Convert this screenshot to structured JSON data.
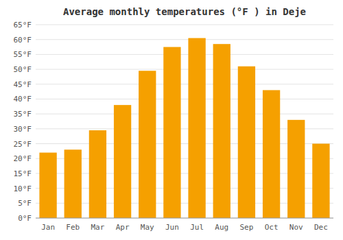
{
  "chart_data": {
    "type": "bar",
    "title": "Average monthly temperatures (°F ) in Deje",
    "categories": [
      "Jan",
      "Feb",
      "Mar",
      "Apr",
      "May",
      "Jun",
      "Jul",
      "Aug",
      "Sep",
      "Oct",
      "Nov",
      "Dec"
    ],
    "values": [
      22,
      23,
      29.5,
      38,
      49.5,
      57.5,
      60.5,
      58.5,
      51,
      43,
      33,
      25
    ],
    "color": "#F5A000",
    "ylim": [
      0,
      65
    ],
    "yticks": [
      {
        "value": 0,
        "label": "0°F"
      },
      {
        "value": 5,
        "label": "5°F"
      },
      {
        "value": 10,
        "label": "10°F"
      },
      {
        "value": 15,
        "label": "15°F"
      },
      {
        "value": 20,
        "label": "20°F"
      },
      {
        "value": 25,
        "label": "25°F"
      },
      {
        "value": 30,
        "label": "30°F"
      },
      {
        "value": 35,
        "label": "35°F"
      },
      {
        "value": 40,
        "label": "40°F"
      },
      {
        "value": 45,
        "label": "45°F"
      },
      {
        "value": 50,
        "label": "50°F"
      },
      {
        "value": 55,
        "label": "55°F"
      },
      {
        "value": 60,
        "label": "60°F"
      },
      {
        "value": 65,
        "label": "65°F"
      }
    ],
    "grid": true
  }
}
